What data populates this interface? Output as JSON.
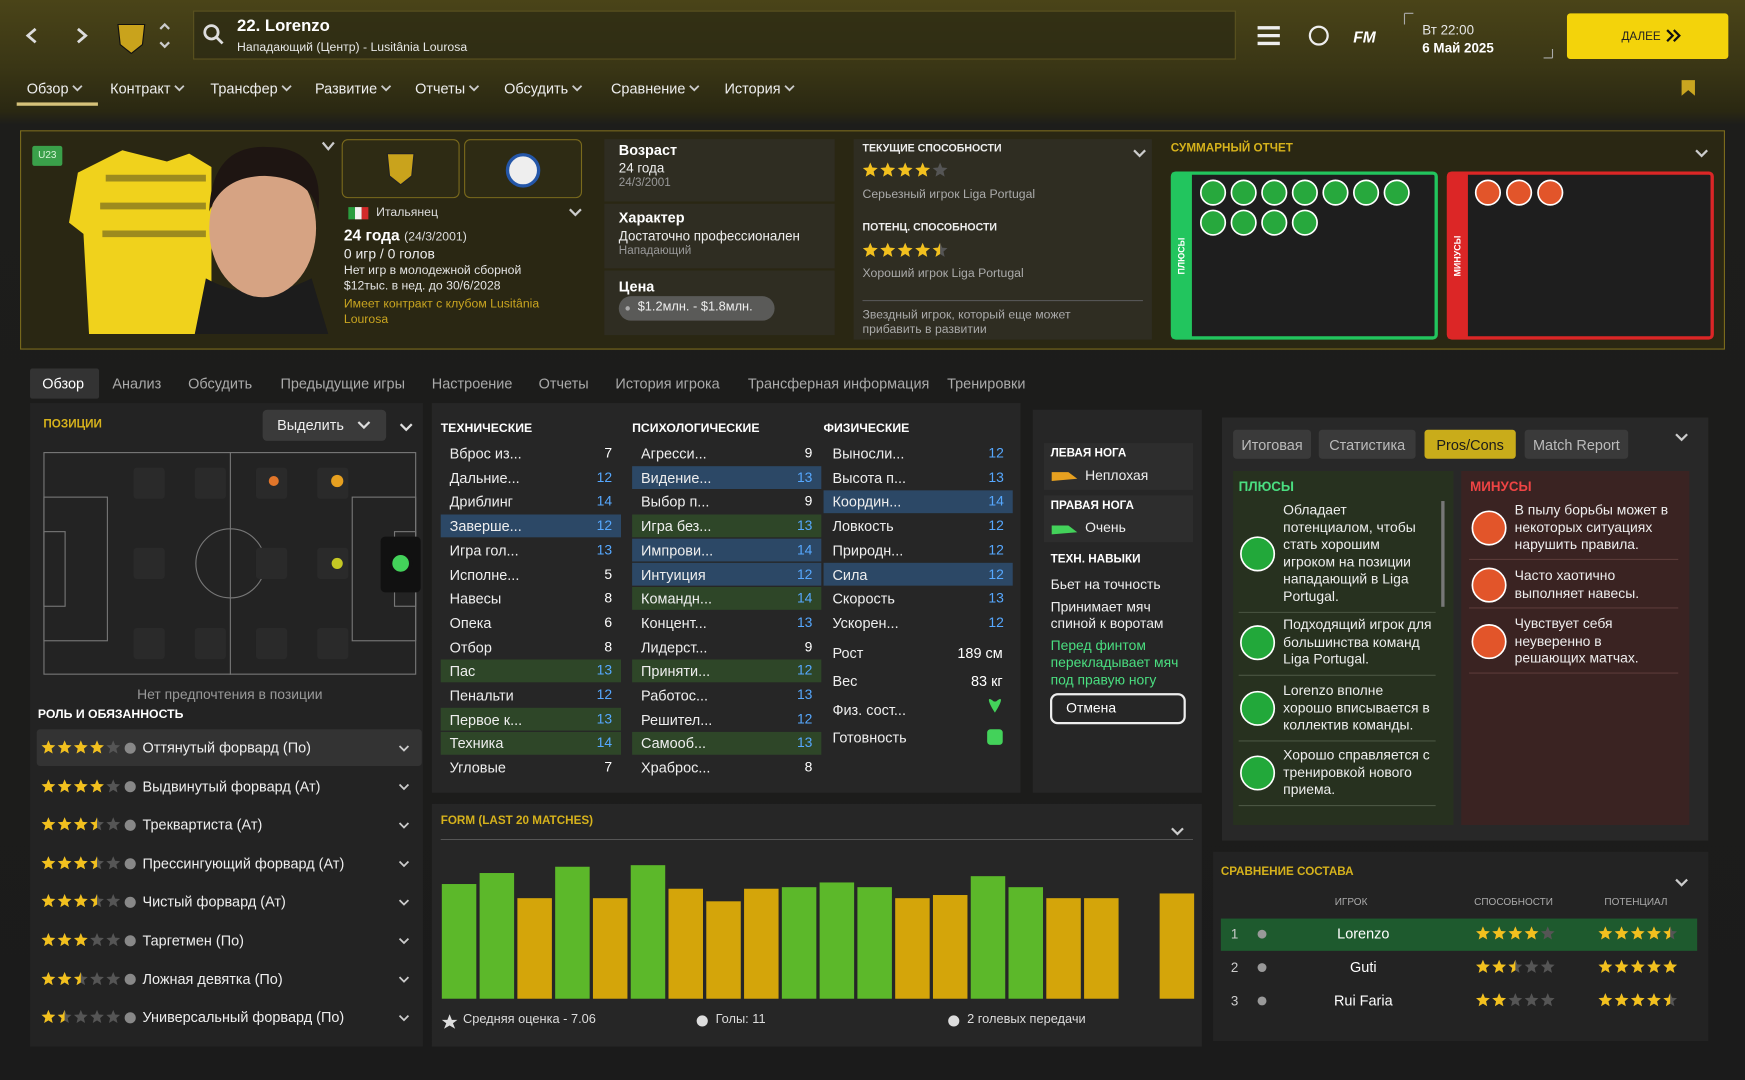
{
  "top_bar": {
    "player": "22. Lorenzo",
    "subtitle": "Нападающий (Центр) - Lusitânia Lourosa",
    "logo": "FM",
    "time": "Вт 22:00",
    "date": "6 Май 2025",
    "continue": "ДАЛЕЕ"
  },
  "nav": [
    "Обзор",
    "Контракт",
    "Трансфер",
    "Развитие",
    "Отчеты",
    "Обсудить",
    "Сравнение",
    "История"
  ],
  "profile": {
    "badge": "U23",
    "nationality": "Итальянец",
    "age": "24 года",
    "birth": "(24/3/2001)",
    "apps": "0 игр / 0 голов",
    "youth": "Нет игр в молодежной сборной",
    "wage": "$12тыс. в нед. до 30/6/2028",
    "contract": "Имеет контракт с клубом Lusitânia Lourosa"
  },
  "info": {
    "age_label": "Возраст",
    "age": "24 года",
    "dob": "24/3/2001",
    "personality_label": "Характер",
    "personality": "Достаточно профессионален",
    "role": "Нападающий",
    "value_label": "Цена",
    "value": "$1.2млн. - $1.8млн."
  },
  "ability": {
    "current_label": "ТЕКУЩИЕ СПОСОБНОСТИ",
    "current_stars": 4,
    "current_text": "Серьезный игрок Liga Portugal",
    "potential_label": "ПОТЕНЦ. СПОСОБНОСТИ",
    "potential_stars": 4.5,
    "potential_text": "Хороший игрок Liga Portugal",
    "note": "Звездный игрок, который еще может прибавить в развитии"
  },
  "summary": {
    "title": "СУММАРНЫЙ ОТЧЕТ",
    "pros_label": "ПЛЮСЫ",
    "cons_label": "МИНУСЫ"
  },
  "tabs": [
    "Обзор",
    "Анализ",
    "Обсудить",
    "Предыдущие игры",
    "Настроение",
    "Отчеты",
    "История игрока",
    "Трансферная информация",
    "Тренировки"
  ],
  "positions": {
    "title": "ПОЗИЦИИ",
    "highlight": "Выделить",
    "note": "Нет предпочтения в позиции",
    "roles_title": "РОЛЬ И ОБЯЗАННОСТЬ",
    "roles": [
      {
        "name": "Оттянутый форвард (По)",
        "stars": 4
      },
      {
        "name": "Выдвинутый форвард (Ат)",
        "stars": 4
      },
      {
        "name": "Треквартиста (Ат)",
        "stars": 3.5
      },
      {
        "name": "Прессингующий форвард (Ат)",
        "stars": 3.5
      },
      {
        "name": "Чистый форвард (Ат)",
        "stars": 3.5
      },
      {
        "name": "Таргетмен (По)",
        "stars": 3
      },
      {
        "name": "Ложная девятка (По)",
        "stars": 2.5
      },
      {
        "name": "Универсальный форвард (По)",
        "stars": 1.5
      }
    ]
  },
  "attributes": {
    "groups": [
      {
        "title": "ТЕХНИЧЕСКИЕ",
        "items": [
          {
            "name": "Вброс из...",
            "value": 7
          },
          {
            "name": "Дальние...",
            "value": 12
          },
          {
            "name": "Дриблинг",
            "value": 14
          },
          {
            "name": "Заверше...",
            "value": 12,
            "highlight": "#2c4866"
          },
          {
            "name": "Игра гол...",
            "value": 13
          },
          {
            "name": "Исполне...",
            "value": 5
          },
          {
            "name": "Навесы",
            "value": 8
          },
          {
            "name": "Опека",
            "value": 6
          },
          {
            "name": "Отбор",
            "value": 8
          },
          {
            "name": "Пас",
            "value": 13,
            "highlight": "#2e4628"
          },
          {
            "name": "Пенальти",
            "value": 12
          },
          {
            "name": "Первое к...",
            "value": 13,
            "highlight": "#2e4628"
          },
          {
            "name": "Техника",
            "value": 14,
            "highlight": "#2e4628"
          },
          {
            "name": "Угловые",
            "value": 7
          }
        ]
      },
      {
        "title": "ПСИХОЛОГИЧЕСКИЕ",
        "items": [
          {
            "name": "Агресси...",
            "value": 9
          },
          {
            "name": "Видение...",
            "value": 13,
            "highlight": "#2c4866"
          },
          {
            "name": "Выбор п...",
            "value": 9
          },
          {
            "name": "Игра без...",
            "value": 13,
            "highlight": "#2e4628"
          },
          {
            "name": "Импрови...",
            "value": 14,
            "highlight": "#2c4866"
          },
          {
            "name": "Интуиция",
            "value": 12,
            "highlight": "#2c4866"
          },
          {
            "name": "Командн...",
            "value": 14,
            "highlight": "#2e4628"
          },
          {
            "name": "Концент...",
            "value": 13
          },
          {
            "name": "Лидерст...",
            "value": 9
          },
          {
            "name": "Приняти...",
            "value": 12,
            "highlight": "#2e4628"
          },
          {
            "name": "Работос...",
            "value": 13
          },
          {
            "name": "Решител...",
            "value": 12
          },
          {
            "name": "Самооб...",
            "value": 13,
            "highlight": "#2e4628"
          },
          {
            "name": "Храброс...",
            "value": 8
          }
        ]
      },
      {
        "title": "ФИЗИЧЕСКИЕ",
        "items": [
          {
            "name": "Выносли...",
            "value": 12
          },
          {
            "name": "Высота п...",
            "value": 13
          },
          {
            "name": "Координ...",
            "value": 14,
            "highlight": "#2c4866"
          },
          {
            "name": "Ловкость",
            "value": 12
          },
          {
            "name": "Природн...",
            "value": 12
          },
          {
            "name": "Сила",
            "value": 12,
            "highlight": "#2c4866"
          },
          {
            "name": "Скорость",
            "value": 13
          },
          {
            "name": "Ускорен...",
            "value": 12
          }
        ]
      }
    ],
    "physical_extra": [
      {
        "name": "Рост",
        "value": "189 см"
      },
      {
        "name": "Вес",
        "value": "83 кг"
      },
      {
        "name": "Физ. сост..."
      },
      {
        "name": "Готовность"
      }
    ]
  },
  "feet": {
    "left_label": "ЛЕВАЯ НОГА",
    "left": "Неплохая",
    "right_label": "ПРАВАЯ НОГА",
    "right": "Очень",
    "traits_label": "ТЕХН. НАВЫКИ",
    "traits": [
      "Бьет на точность",
      "Принимает мяч спиной к воротам",
      "Перед финтом перекладывает мяч под правую ногу"
    ],
    "cancel": "Отмена"
  },
  "form": {
    "type": "bar",
    "title": "FORM (LAST 20 MATCHES)",
    "values": [
      7.3,
      8.0,
      6.4,
      8.4,
      6.4,
      8.5,
      7.0,
      6.2,
      7.0,
      7.1,
      7.4,
      7.1,
      6.4,
      6.6,
      7.8,
      7.1,
      6.4,
      6.4,
      null,
      6.7
    ],
    "colors": [
      "#5cb82a",
      "#5cb82a",
      "#d4a50a",
      "#5cb82a",
      "#d4a50a",
      "#5cb82a",
      "#d4a50a",
      "#d4a50a",
      "#d4a50a",
      "#5cb82a",
      "#5cb82a",
      "#5cb82a",
      "#d4a50a",
      "#d4a50a",
      "#5cb82a",
      "#5cb82a",
      "#d4a50a",
      "#d4a50a",
      null,
      "#d4a50a"
    ],
    "ylim": [
      0,
      9
    ],
    "average": "Средняя оценка - 7.06",
    "goals": "Голы: 11",
    "assists": "2 голевых передачи"
  },
  "report": {
    "tabs": [
      "Итоговая",
      "Статистика",
      "Pros/Cons",
      "Match Report"
    ],
    "active": 2,
    "pros_title": "ПЛЮСЫ",
    "pros": [
      "Обладает потенциалом, чтобы стать хорошим игроком на позиции нападающий в Liga Portugal.",
      "Подходящий игрок для большинства команд Liga Portugal.",
      "Lorenzo вполне хорошо вписывается в коллектив команды.",
      "Хорошо справляется с тренировкой нового приема."
    ],
    "cons_title": "МИНУСЫ",
    "cons": [
      "В пылу борьбы может в некоторых ситуациях нарушить правила.",
      "Часто хаотично выполняет навесы.",
      "Чувствует себя неуверенно в решающих матчах."
    ]
  },
  "squad": {
    "title": "СРАВНЕНИЕ СОСТАВА",
    "headers": [
      "ИГРОК",
      "СПОСОБНОСТИ",
      "ПОТЕНЦИАЛ"
    ],
    "rows": [
      {
        "rank": 1,
        "name": "Lorenzo",
        "ability": 4,
        "potential": 4.5
      },
      {
        "rank": 2,
        "name": "Guti",
        "ability": 2.5,
        "potential": 5
      },
      {
        "rank": 3,
        "name": "Rui Faria",
        "ability": 2,
        "potential": 4.5
      }
    ]
  }
}
